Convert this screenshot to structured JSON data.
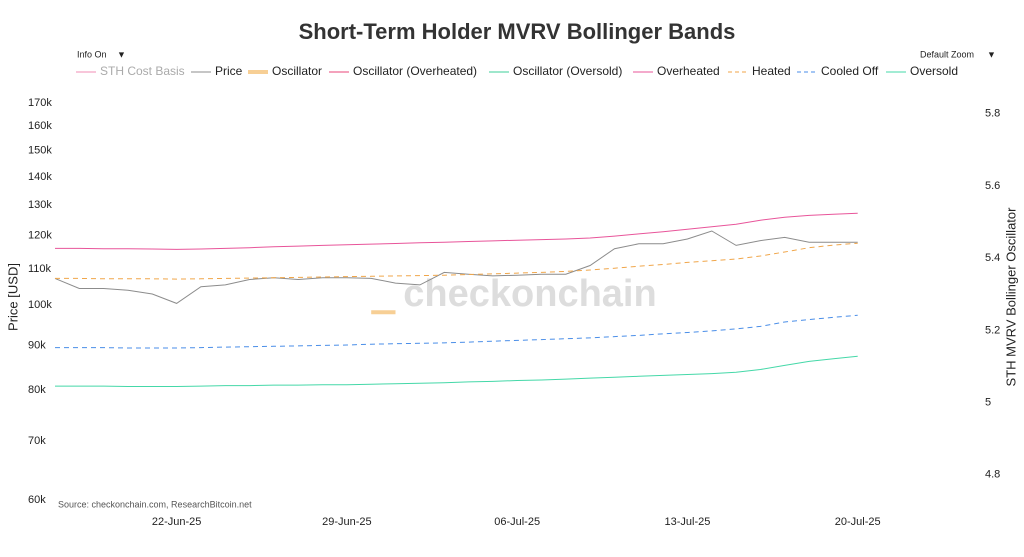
{
  "chart_data": {
    "type": "line",
    "title": "Short-Term Holder MVRV Bollinger Bands",
    "watermark": "checkonchain",
    "source": "Source: checkonchain.com, ResearchBitcoin.net",
    "controls": {
      "info": "Info On",
      "zoom": "Default Zoom",
      "arrow": "▼"
    },
    "y_label": "Price [USD]",
    "y2_label": "STH MVRV Bollinger Oscillator",
    "log_y": true,
    "x": [
      "2025-06-17",
      "2025-06-18",
      "2025-06-19",
      "2025-06-20",
      "2025-06-21",
      "2025-06-22",
      "2025-06-23",
      "2025-06-24",
      "2025-06-25",
      "2025-06-26",
      "2025-06-27",
      "2025-06-28",
      "2025-06-29",
      "2025-06-30",
      "2025-07-01",
      "2025-07-02",
      "2025-07-03",
      "2025-07-04",
      "2025-07-05",
      "2025-07-06",
      "2025-07-07",
      "2025-07-08",
      "2025-07-09",
      "2025-07-10",
      "2025-07-11",
      "2025-07-12",
      "2025-07-13",
      "2025-07-14",
      "2025-07-15",
      "2025-07-16",
      "2025-07-17",
      "2025-07-18",
      "2025-07-19",
      "2025-07-20"
    ],
    "xlim": [
      "2025-06-17",
      "2025-07-24"
    ],
    "xticks": [
      {
        "value": "2025-06-22",
        "label": "22-Jun-25"
      },
      {
        "value": "2025-06-29",
        "label": "29-Jun-25"
      },
      {
        "value": "2025-07-06",
        "label": "06-Jul-25"
      },
      {
        "value": "2025-07-13",
        "label": "13-Jul-25"
      },
      {
        "value": "2025-07-20",
        "label": "20-Jul-25"
      }
    ],
    "ylim": [
      60000,
      170000
    ],
    "yticks": [
      {
        "value": 60000,
        "label": "60k"
      },
      {
        "value": 70000,
        "label": "70k"
      },
      {
        "value": 80000,
        "label": "80k"
      },
      {
        "value": 90000,
        "label": "90k"
      },
      {
        "value": 100000,
        "label": "100k"
      },
      {
        "value": 110000,
        "label": "110k"
      },
      {
        "value": 120000,
        "label": "120k"
      },
      {
        "value": 130000,
        "label": "130k"
      },
      {
        "value": 140000,
        "label": "140k"
      },
      {
        "value": 150000,
        "label": "150k"
      },
      {
        "value": 160000,
        "label": "160k"
      },
      {
        "value": 170000,
        "label": "170k"
      }
    ],
    "y2lim": [
      4.73,
      5.83
    ],
    "y2ticks": [
      4.8,
      5,
      5.2,
      5.4,
      5.6,
      5.8
    ],
    "series": [
      {
        "name": "STH Cost Basis",
        "color": "#f08cb4",
        "visible": false
      },
      {
        "name": "Price",
        "color": "#8c8c8c",
        "values": [
          107300,
          104500,
          104500,
          104000,
          103000,
          100500,
          105000,
          105500,
          107000,
          107500,
          107000,
          107500,
          107500,
          107300,
          106000,
          105500,
          109000,
          108500,
          108000,
          108200,
          108500,
          108500,
          111000,
          116000,
          117500,
          117500,
          119000,
          121500,
          117000,
          118500,
          119500,
          118000,
          118000,
          118000
        ]
      },
      {
        "name": "Oscillator",
        "color": "#f7cf95",
        "axis": "y2",
        "width": 4,
        "values": [
          null,
          null,
          null,
          null,
          null,
          null,
          null,
          null,
          null,
          null,
          null,
          null,
          null,
          5.25,
          5.25,
          null,
          null,
          null,
          null,
          null,
          null,
          null,
          null,
          null,
          null,
          null,
          null,
          null,
          null,
          null,
          null,
          null,
          null,
          null
        ]
      },
      {
        "name": "Oscillator (Overheated)",
        "color": "#e8457a",
        "axis": "y2"
      },
      {
        "name": "Oscillator (Oversold)",
        "color": "#3ccf9a",
        "axis": "y2"
      },
      {
        "name": "Overheated",
        "color": "#e8559a",
        "values": [
          116100,
          116100,
          116000,
          116000,
          115900,
          115800,
          115900,
          116100,
          116300,
          116600,
          116800,
          117000,
          117200,
          117400,
          117600,
          117800,
          118000,
          118200,
          118400,
          118600,
          118800,
          119000,
          119300,
          119900,
          120600,
          121300,
          122100,
          122900,
          123700,
          125000,
          126000,
          126600,
          127000,
          127300
        ]
      },
      {
        "name": "Heated",
        "color": "#f0a64a",
        "dash": true,
        "values": [
          107300,
          107300,
          107200,
          107200,
          107200,
          107100,
          107200,
          107300,
          107400,
          107500,
          107600,
          107700,
          107800,
          107900,
          108000,
          108100,
          108200,
          108400,
          108600,
          108800,
          109000,
          109300,
          109700,
          110200,
          110800,
          111300,
          111900,
          112400,
          112900,
          113800,
          115000,
          116300,
          117100,
          117700
        ]
      },
      {
        "name": "Cooled Off",
        "color": "#4a8ee8",
        "dash": true,
        "values": [
          89500,
          89500,
          89500,
          89400,
          89400,
          89400,
          89500,
          89600,
          89700,
          89800,
          89900,
          90000,
          90100,
          90300,
          90400,
          90500,
          90600,
          90800,
          91000,
          91200,
          91400,
          91600,
          91800,
          92100,
          92400,
          92800,
          93100,
          93500,
          94000,
          94600,
          95700,
          96300,
          96900,
          97400
        ]
      },
      {
        "name": "Oversold",
        "color": "#45d8a8",
        "values": [
          80900,
          80900,
          80900,
          80800,
          80800,
          80800,
          80900,
          81000,
          81000,
          81100,
          81100,
          81200,
          81200,
          81300,
          81400,
          81500,
          81600,
          81800,
          81900,
          82100,
          82200,
          82400,
          82600,
          82800,
          83000,
          83200,
          83400,
          83600,
          83900,
          84500,
          85400,
          86300,
          86900,
          87500
        ]
      }
    ]
  }
}
